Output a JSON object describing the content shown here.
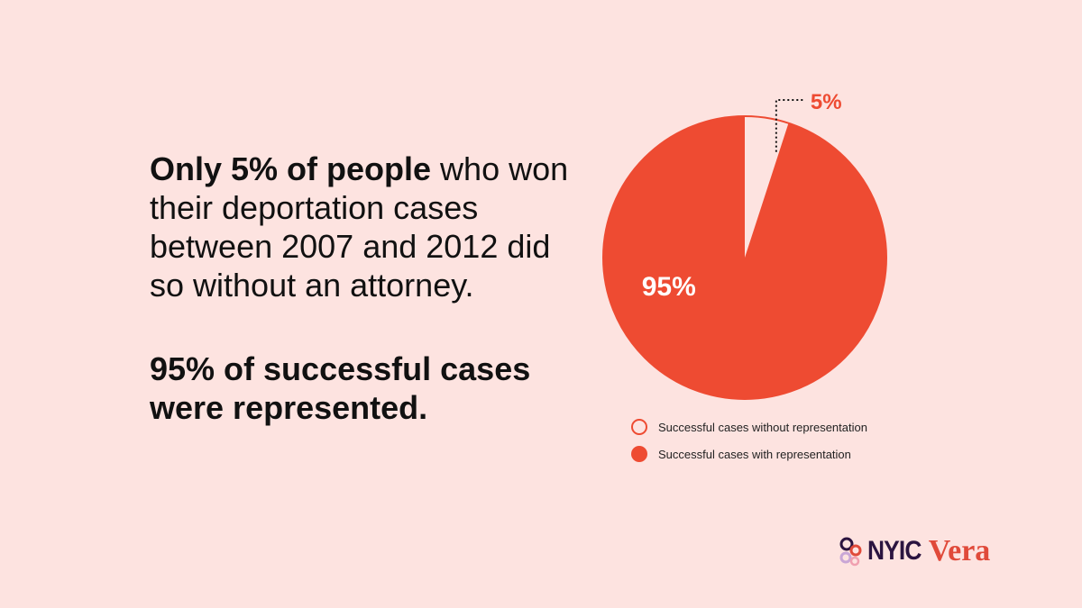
{
  "headline": {
    "bold_lead": "Only 5% of people",
    "rest": " who won their deportation cases between 2007 and 2012 did so without an attorney.",
    "second": "95% of successful cases were represented."
  },
  "colors": {
    "background": "#fde3e0",
    "accent": "#ee4b32",
    "light_slice": "#fde3e0"
  },
  "chart_data": {
    "type": "pie",
    "slices": [
      {
        "label": "Successful cases without representation",
        "value": 5,
        "display": "5%",
        "color": "#fde3e0"
      },
      {
        "label": "Successful cases with representation",
        "value": 95,
        "display": "95%",
        "color": "#ee4b32"
      }
    ],
    "legend_position": "bottom-left"
  },
  "legend": {
    "items": [
      {
        "label": "Successful cases without representation",
        "style": "outline"
      },
      {
        "label": "Successful cases with representation",
        "style": "filled"
      }
    ]
  },
  "logos": {
    "nyic": "NYIC",
    "vera": "Vera"
  }
}
